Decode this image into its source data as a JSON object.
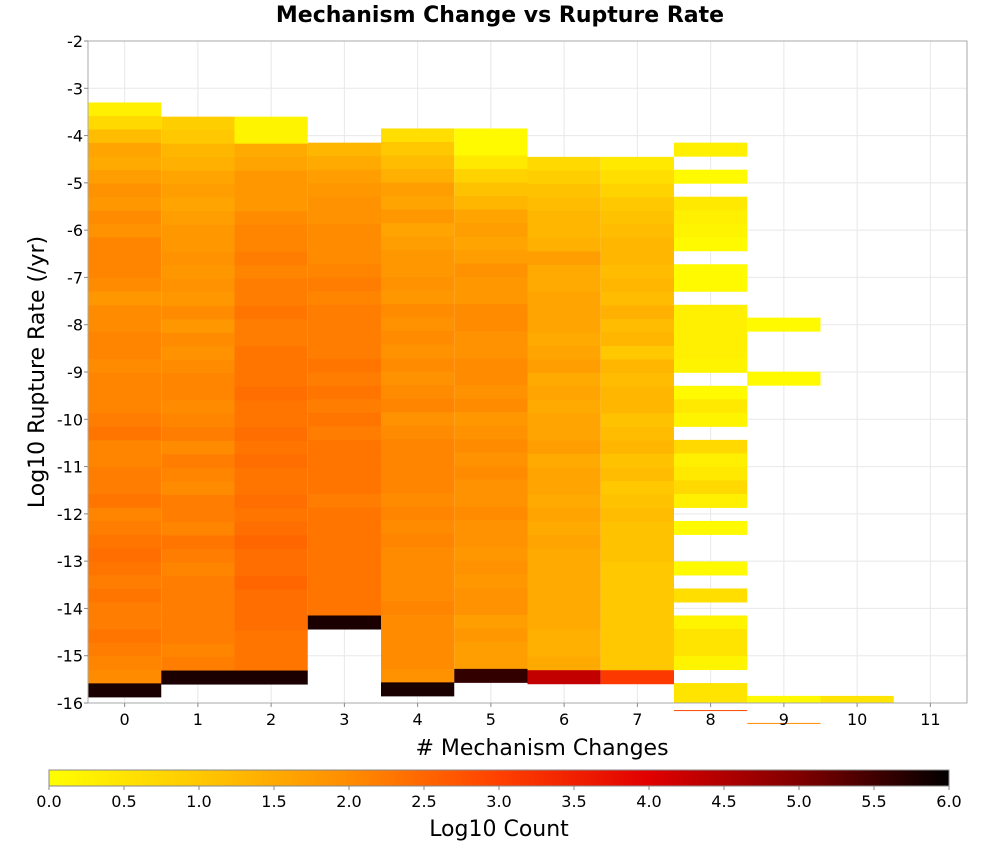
{
  "chart_data": {
    "type": "heatmap",
    "title": "Mechanism Change vs Rupture Rate",
    "xlabel": "# Mechanism Changes",
    "ylabel": "Log10 Rupture Rate (/yr)",
    "colorbar_label": "Log10 Count",
    "x_ticks": [
      "0",
      "1",
      "2",
      "3",
      "4",
      "5",
      "6",
      "7",
      "8",
      "9",
      "10",
      "11"
    ],
    "y_ticks": [
      "-2",
      "-3",
      "-4",
      "-5",
      "-6",
      "-7",
      "-8",
      "-9",
      "-10",
      "-11",
      "-12",
      "-13",
      "-14",
      "-15",
      "-16"
    ],
    "colorbar_ticks": [
      "0.0",
      "0.5",
      "1.0",
      "1.5",
      "2.0",
      "2.5",
      "3.0",
      "3.5",
      "4.0",
      "4.5",
      "5.0",
      "5.5",
      "6.0"
    ],
    "xlim": [
      -0.5,
      11.5
    ],
    "ylim": [
      -16,
      -2
    ],
    "clim": [
      0,
      6
    ],
    "colormap": [
      "#ffff00",
      "#ffc800",
      "#ff8c00",
      "#ff4000",
      "#e00000",
      "#800000",
      "#000000"
    ],
    "grid": true,
    "bin_height": 0.2857,
    "columns": [
      {
        "x": 0,
        "top": -3.3,
        "values": [
          0.3,
          0.7,
          1.2,
          1.6,
          1.5,
          1.7,
          1.9,
          1.8,
          2.0,
          1.9,
          2.1,
          2.1,
          2.1,
          2.0,
          1.8,
          2.0,
          2.0,
          2.1,
          2.1,
          2.0,
          2.1,
          2.1,
          2.1,
          2.2,
          2.3,
          2.1,
          2.1,
          2.2,
          2.2,
          2.3,
          2.1,
          2.2,
          2.3,
          2.4,
          2.3,
          2.2,
          2.3,
          2.2,
          2.2,
          2.3,
          2.2,
          2.1,
          2.0,
          5.8
        ]
      },
      {
        "x": 1,
        "top": -3.6,
        "values": [
          0.9,
          1.0,
          1.3,
          1.4,
          1.6,
          1.7,
          1.6,
          1.7,
          1.8,
          1.8,
          1.9,
          1.8,
          1.9,
          1.8,
          2.0,
          1.8,
          2.0,
          1.9,
          2.0,
          2.1,
          2.1,
          2.0,
          2.1,
          2.2,
          2.0,
          2.2,
          2.1,
          2.0,
          2.2,
          2.2,
          2.1,
          2.3,
          2.2,
          2.1,
          2.2,
          2.2,
          2.2,
          2.2,
          2.2,
          2.1,
          2.2,
          5.8
        ]
      },
      {
        "x": 2,
        "top": -3.6,
        "values": [
          0.2,
          0.2,
          1.5,
          1.6,
          1.8,
          1.8,
          1.8,
          2.0,
          2.1,
          2.1,
          2.2,
          2.1,
          2.2,
          2.2,
          2.3,
          2.2,
          2.2,
          2.3,
          2.3,
          2.3,
          2.4,
          2.3,
          2.3,
          2.4,
          2.3,
          2.4,
          2.3,
          2.3,
          2.4,
          2.3,
          2.4,
          2.5,
          2.4,
          2.4,
          2.5,
          2.4,
          2.4,
          2.4,
          2.3,
          2.3,
          2.3,
          5.8
        ]
      },
      {
        "x": 3,
        "top": -4.15,
        "values": [
          1.3,
          1.5,
          1.7,
          1.8,
          1.9,
          1.9,
          2.0,
          2.0,
          2.0,
          2.1,
          2.2,
          2.1,
          2.2,
          2.2,
          2.2,
          2.2,
          2.3,
          2.2,
          2.3,
          2.2,
          2.3,
          2.2,
          2.3,
          2.3,
          2.3,
          2.3,
          2.2,
          2.3,
          2.3,
          2.3,
          2.3,
          2.3,
          2.3,
          2.3,
          2.3,
          5.8
        ]
      },
      {
        "x": 4,
        "top": -3.85,
        "values": [
          0.6,
          1.0,
          1.2,
          1.4,
          1.7,
          1.6,
          1.8,
          1.6,
          1.7,
          1.8,
          1.8,
          1.9,
          1.8,
          2.0,
          1.9,
          2.0,
          1.9,
          2.0,
          1.9,
          2.0,
          2.1,
          1.9,
          2.0,
          2.1,
          2.1,
          2.1,
          2.1,
          2.0,
          2.1,
          2.0,
          2.1,
          2.0,
          2.0,
          2.0,
          2.0,
          2.1,
          2.0,
          2.0,
          2.0,
          2.0,
          1.9,
          5.8
        ]
      },
      {
        "x": 5,
        "top": -3.85,
        "values": [
          0.1,
          0.1,
          0.4,
          0.8,
          1.1,
          1.3,
          1.6,
          1.7,
          1.6,
          1.7,
          1.9,
          1.8,
          1.8,
          2.0,
          2.0,
          1.9,
          1.9,
          2.0,
          2.0,
          1.9,
          2.0,
          1.8,
          1.9,
          2.0,
          1.9,
          2.0,
          1.9,
          1.9,
          2.0,
          1.9,
          1.9,
          1.8,
          1.9,
          1.8,
          1.9,
          1.9,
          1.7,
          1.8,
          1.7,
          1.7,
          5.6
        ]
      },
      {
        "x": 6,
        "top": -4.45,
        "values": [
          0.7,
          0.9,
          1.1,
          1.2,
          1.3,
          1.3,
          1.4,
          1.7,
          1.5,
          1.5,
          1.6,
          1.6,
          1.6,
          1.5,
          1.6,
          1.7,
          1.5,
          1.6,
          1.5,
          1.6,
          1.6,
          1.7,
          1.5,
          1.6,
          1.6,
          1.5,
          1.6,
          1.5,
          1.6,
          1.5,
          1.5,
          1.5,
          1.5,
          1.5,
          1.5,
          1.4,
          1.4,
          1.5,
          4.3
        ]
      },
      {
        "x": 7,
        "top": -4.45,
        "values": [
          0.4,
          0.6,
          0.8,
          1.0,
          1.1,
          1.2,
          1.3,
          1.3,
          1.2,
          1.3,
          1.2,
          1.4,
          1.2,
          1.3,
          1.0,
          1.3,
          1.2,
          1.3,
          1.3,
          1.1,
          1.2,
          1.3,
          1.1,
          1.2,
          1.0,
          1.1,
          1.2,
          1.1,
          1.1,
          1.1,
          1.0,
          1.0,
          1.0,
          1.0,
          1.0,
          1.0,
          1.0,
          1.0,
          3.1
        ]
      },
      {
        "x": 8,
        "top": -4.15,
        "values": [
          0.3,
          null,
          0.1,
          null,
          0.4,
          0.3,
          0.2,
          0.1,
          null,
          0.1,
          0.1,
          null,
          0.3,
          0.3,
          0.3,
          0.3,
          0.2,
          null,
          0.1,
          0.4,
          0.2,
          null,
          0.7,
          0.3,
          0.4,
          0.7,
          0.3,
          null,
          0.1,
          null,
          null,
          0.1,
          null,
          0.6,
          null,
          0.2,
          0.5,
          0.5,
          0.2,
          null,
          0.5,
          0.5,
          2.9
        ]
      },
      {
        "x": 9,
        "top": -7.85,
        "values": [
          0.1,
          null,
          null,
          null,
          0.1,
          null,
          null,
          null,
          null,
          null,
          null,
          null,
          null,
          null,
          null,
          null,
          null,
          null,
          null,
          null,
          null,
          null,
          null,
          null,
          null,
          null,
          null,
          null,
          0.1,
          null,
          2.0
        ]
      },
      {
        "x": 10,
        "top": -15.85,
        "values": [
          0.5
        ]
      }
    ]
  }
}
